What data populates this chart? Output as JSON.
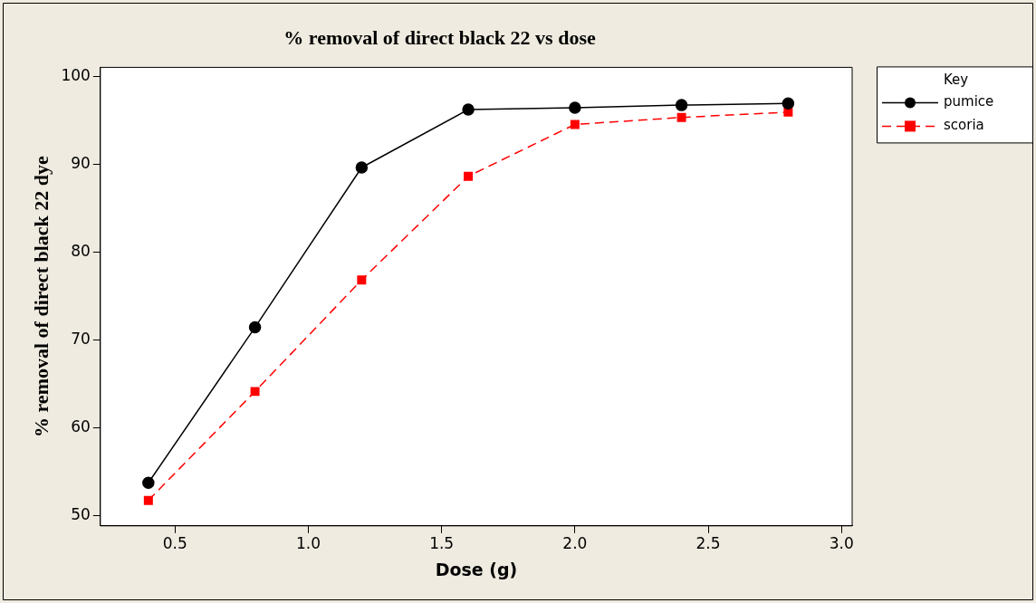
{
  "chart_data": {
    "type": "line",
    "title": "% removal of direct black 22 vs dose",
    "xlabel": "Dose (g)",
    "ylabel": "% removal of direct black 22 dye",
    "legend_title": "Key",
    "legend": "right",
    "x": [
      0.4,
      0.8,
      1.2,
      1.6,
      2.0,
      2.4,
      2.8
    ],
    "series": [
      {
        "name": "pumice",
        "color": "#000000",
        "marker": "circle",
        "line_style": "solid",
        "values": [
          53.7,
          71.4,
          89.6,
          96.2,
          96.4,
          96.7,
          96.9
        ]
      },
      {
        "name": "scoria",
        "color": "#ff0000",
        "marker": "square",
        "line_style": "dashed",
        "values": [
          51.7,
          64.1,
          76.8,
          88.6,
          94.5,
          95.3,
          95.9
        ]
      }
    ],
    "xlim": [
      0.22,
      3.04
    ],
    "xticks": [
      {
        "value": 0.5,
        "label": "0.5"
      },
      {
        "value": 1.0,
        "label": "1.0"
      },
      {
        "value": 1.5,
        "label": "1.5"
      },
      {
        "value": 2.0,
        "label": "2.0"
      },
      {
        "value": 2.5,
        "label": "2.5"
      },
      {
        "value": 3.0,
        "label": "3.0"
      }
    ],
    "ylim": [
      48.8,
      101
    ],
    "yticks": [
      50,
      60,
      70,
      80,
      90,
      100
    ],
    "grid": false
  }
}
